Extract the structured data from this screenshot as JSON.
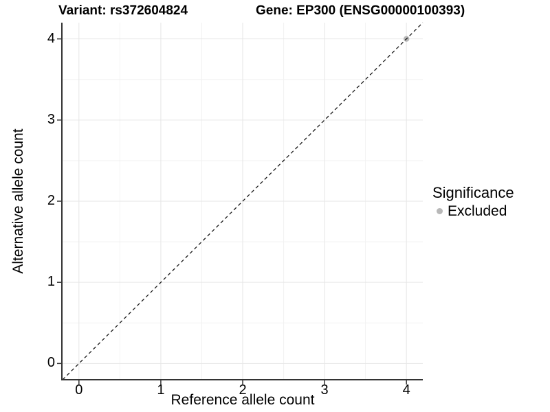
{
  "chart_data": {
    "type": "scatter",
    "title_left": "Variant: rs372604824",
    "title_right": "Gene: EP300 (ENSG00000100393)",
    "xlabel": "Reference allele count",
    "ylabel": "Alternative allele count",
    "xlim": [
      -0.2,
      4.2
    ],
    "ylim": [
      -0.2,
      4.2
    ],
    "x_ticks": [
      0,
      1,
      2,
      3,
      4
    ],
    "y_ticks": [
      0,
      1,
      2,
      3,
      4
    ],
    "x_minor": [
      0.5,
      1.5,
      2.5,
      3.5
    ],
    "y_minor": [
      0.5,
      1.5,
      2.5,
      3.5
    ],
    "grid": "major+minor",
    "reference_line": {
      "type": "identity y=x",
      "style": "dashed",
      "color": "#1a1a1a",
      "span": [
        -0.2,
        4.2
      ]
    },
    "series": [
      {
        "name": "Excluded",
        "color": "#b8b8b8",
        "points": [
          [
            4,
            4
          ]
        ]
      }
    ],
    "legend": {
      "title": "Significance",
      "position": "right-center",
      "items": [
        {
          "label": "Excluded",
          "color": "#b8b8b8",
          "marker": "dot"
        }
      ]
    },
    "colors": {
      "axis_line": "#333333",
      "tick_mark": "#333333",
      "grid_major": "#e6e6e6",
      "grid_minor": "#f2f2f2",
      "background": "#ffffff",
      "text": "#000000"
    }
  }
}
